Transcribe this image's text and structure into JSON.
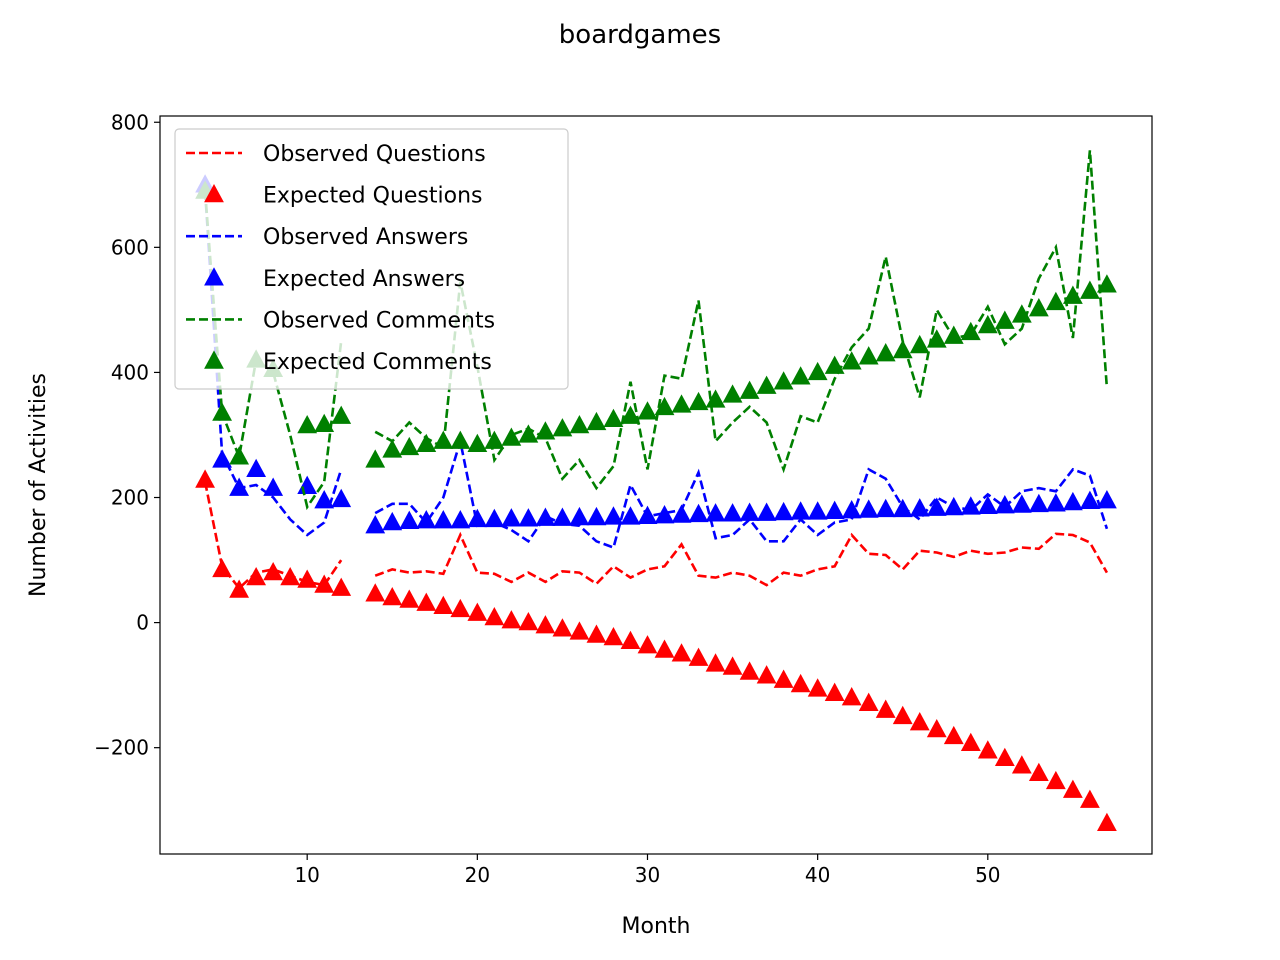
{
  "chart_data": {
    "type": "line",
    "title": "boardgames",
    "xlabel": "Month",
    "ylabel": "Number of Activities",
    "xlim": [
      1.35,
      59.65
    ],
    "ylim": [
      -370,
      810
    ],
    "xticks": [
      10,
      20,
      30,
      40,
      50
    ],
    "yticks": [
      -200,
      0,
      200,
      400,
      600,
      800
    ],
    "ytick_labels": [
      "−200",
      "0",
      "200",
      "400",
      "600",
      "800"
    ],
    "legend_position": "upper left",
    "series": [
      {
        "name": "Observed Questions",
        "style": "dashed-line",
        "color": "#ff0000",
        "x": [
          4,
          5,
          6,
          7,
          8,
          9,
          10,
          11,
          12,
          null,
          14,
          15,
          16,
          17,
          18,
          19,
          20,
          21,
          22,
          23,
          24,
          25,
          26,
          27,
          28,
          29,
          30,
          31,
          32,
          33,
          34,
          35,
          36,
          37,
          38,
          39,
          40,
          41,
          42,
          43,
          44,
          45,
          46,
          47,
          48,
          49,
          50,
          51,
          52,
          53,
          54,
          55,
          56,
          57
        ],
        "values": [
          225,
          90,
          55,
          80,
          85,
          75,
          65,
          60,
          100,
          null,
          75,
          85,
          80,
          82,
          78,
          140,
          80,
          78,
          65,
          80,
          65,
          82,
          80,
          62,
          90,
          72,
          85,
          90,
          125,
          75,
          72,
          80,
          75,
          60,
          80,
          75,
          85,
          90,
          140,
          110,
          108,
          85,
          115,
          112,
          105,
          115,
          110,
          112,
          120,
          118,
          142,
          140,
          128,
          80
        ]
      },
      {
        "name": "Expected Questions",
        "style": "triangle-marker",
        "color": "#ff0000",
        "x": [
          4,
          5,
          6,
          7,
          8,
          9,
          10,
          11,
          12,
          14,
          15,
          16,
          17,
          18,
          19,
          20,
          21,
          22,
          23,
          24,
          25,
          26,
          27,
          28,
          29,
          30,
          31,
          32,
          33,
          34,
          35,
          36,
          37,
          38,
          39,
          40,
          41,
          42,
          43,
          44,
          45,
          46,
          47,
          48,
          49,
          50,
          51,
          52,
          53,
          54,
          55,
          56,
          57
        ],
        "values": [
          228,
          85,
          52,
          72,
          80,
          72,
          68,
          60,
          55,
          46,
          40,
          36,
          31,
          26,
          21,
          15,
          8,
          3,
          0,
          -5,
          -10,
          -15,
          -20,
          -24,
          -30,
          -37,
          -44,
          -50,
          -57,
          -66,
          -71,
          -79,
          -85,
          -92,
          -99,
          -106,
          -113,
          -120,
          -129,
          -140,
          -150,
          -160,
          -171,
          -182,
          -193,
          -205,
          -217,
          -229,
          -241,
          -254,
          -268,
          -284,
          -321
        ]
      },
      {
        "name": "Observed Answers",
        "style": "dashed-line",
        "color": "#0000ff",
        "x": [
          4,
          5,
          6,
          7,
          8,
          9,
          10,
          11,
          12,
          null,
          14,
          15,
          16,
          17,
          18,
          19,
          20,
          21,
          22,
          23,
          24,
          25,
          26,
          27,
          28,
          29,
          30,
          31,
          32,
          33,
          34,
          35,
          36,
          37,
          38,
          39,
          40,
          41,
          42,
          43,
          44,
          45,
          46,
          47,
          48,
          49,
          50,
          51,
          52,
          53,
          54,
          55,
          56,
          57
        ],
        "values": [
          690,
          270,
          215,
          220,
          200,
          165,
          140,
          160,
          245,
          null,
          175,
          190,
          190,
          160,
          200,
          290,
          155,
          160,
          148,
          130,
          170,
          158,
          155,
          130,
          120,
          220,
          170,
          175,
          180,
          240,
          135,
          140,
          165,
          130,
          130,
          165,
          140,
          160,
          165,
          245,
          230,
          185,
          165,
          200,
          185,
          180,
          205,
          185,
          210,
          215,
          210,
          245,
          235,
          150
        ]
      },
      {
        "name": "Expected Answers",
        "style": "triangle-marker",
        "color": "#0000ff",
        "x": [
          4,
          5,
          6,
          7,
          8,
          9,
          10,
          11,
          12,
          14,
          15,
          16,
          17,
          18,
          19,
          20,
          21,
          22,
          23,
          24,
          25,
          26,
          27,
          28,
          29,
          30,
          31,
          32,
          33,
          34,
          35,
          36,
          37,
          38,
          39,
          40,
          41,
          42,
          43,
          44,
          45,
          46,
          47,
          48,
          49,
          50,
          51,
          52,
          53,
          54,
          55,
          56,
          57
        ],
        "values": [
          700,
          260,
          215,
          245,
          215,
          null,
          218,
          195,
          197,
          155,
          160,
          162,
          163,
          163,
          163,
          165,
          165,
          166,
          166,
          167,
          167,
          168,
          168,
          169,
          169,
          170,
          171,
          172,
          173,
          174,
          174,
          175,
          175,
          176,
          177,
          177,
          178,
          179,
          180,
          181,
          181,
          182,
          183,
          184,
          185,
          186,
          187,
          188,
          189,
          190,
          192,
          194,
          195
        ]
      },
      {
        "name": "Observed Comments",
        "style": "dashed-line",
        "color": "#008000",
        "x": [
          4,
          5,
          6,
          7,
          8,
          9,
          10,
          11,
          12,
          null,
          14,
          15,
          16,
          17,
          18,
          19,
          20,
          21,
          22,
          23,
          24,
          25,
          26,
          27,
          28,
          29,
          30,
          31,
          32,
          33,
          34,
          35,
          36,
          37,
          38,
          39,
          40,
          41,
          42,
          43,
          44,
          45,
          46,
          47,
          48,
          49,
          50,
          51,
          52,
          53,
          54,
          55,
          56,
          57
        ],
        "values": [
          690,
          335,
          265,
          420,
          400,
          300,
          185,
          225,
          450,
          null,
          305,
          290,
          320,
          295,
          280,
          545,
          410,
          260,
          300,
          310,
          295,
          230,
          260,
          215,
          250,
          385,
          245,
          395,
          390,
          515,
          290,
          320,
          345,
          320,
          245,
          330,
          320,
          390,
          440,
          470,
          585,
          450,
          360,
          500,
          455,
          460,
          505,
          445,
          470,
          550,
          600,
          455,
          755,
          375
        ]
      },
      {
        "name": "Expected Comments",
        "style": "triangle-marker",
        "color": "#008000",
        "x": [
          4,
          5,
          6,
          7,
          8,
          9,
          10,
          11,
          12,
          14,
          15,
          16,
          17,
          18,
          19,
          20,
          21,
          22,
          23,
          24,
          25,
          26,
          27,
          28,
          29,
          30,
          31,
          32,
          33,
          34,
          35,
          36,
          37,
          38,
          39,
          40,
          41,
          42,
          43,
          44,
          45,
          46,
          47,
          48,
          49,
          50,
          51,
          52,
          53,
          54,
          55,
          56,
          57
        ],
        "values": [
          690,
          335,
          265,
          420,
          405,
          null,
          315,
          317,
          330,
          260,
          276,
          280,
          285,
          290,
          290,
          285,
          290,
          295,
          300,
          305,
          310,
          315,
          320,
          325,
          330,
          337,
          344,
          348,
          352,
          356,
          364,
          370,
          378,
          385,
          393,
          400,
          410,
          417,
          425,
          430,
          435,
          443,
          452,
          458,
          464,
          475,
          482,
          492,
          502,
          512,
          522,
          530,
          540
        ]
      }
    ]
  }
}
